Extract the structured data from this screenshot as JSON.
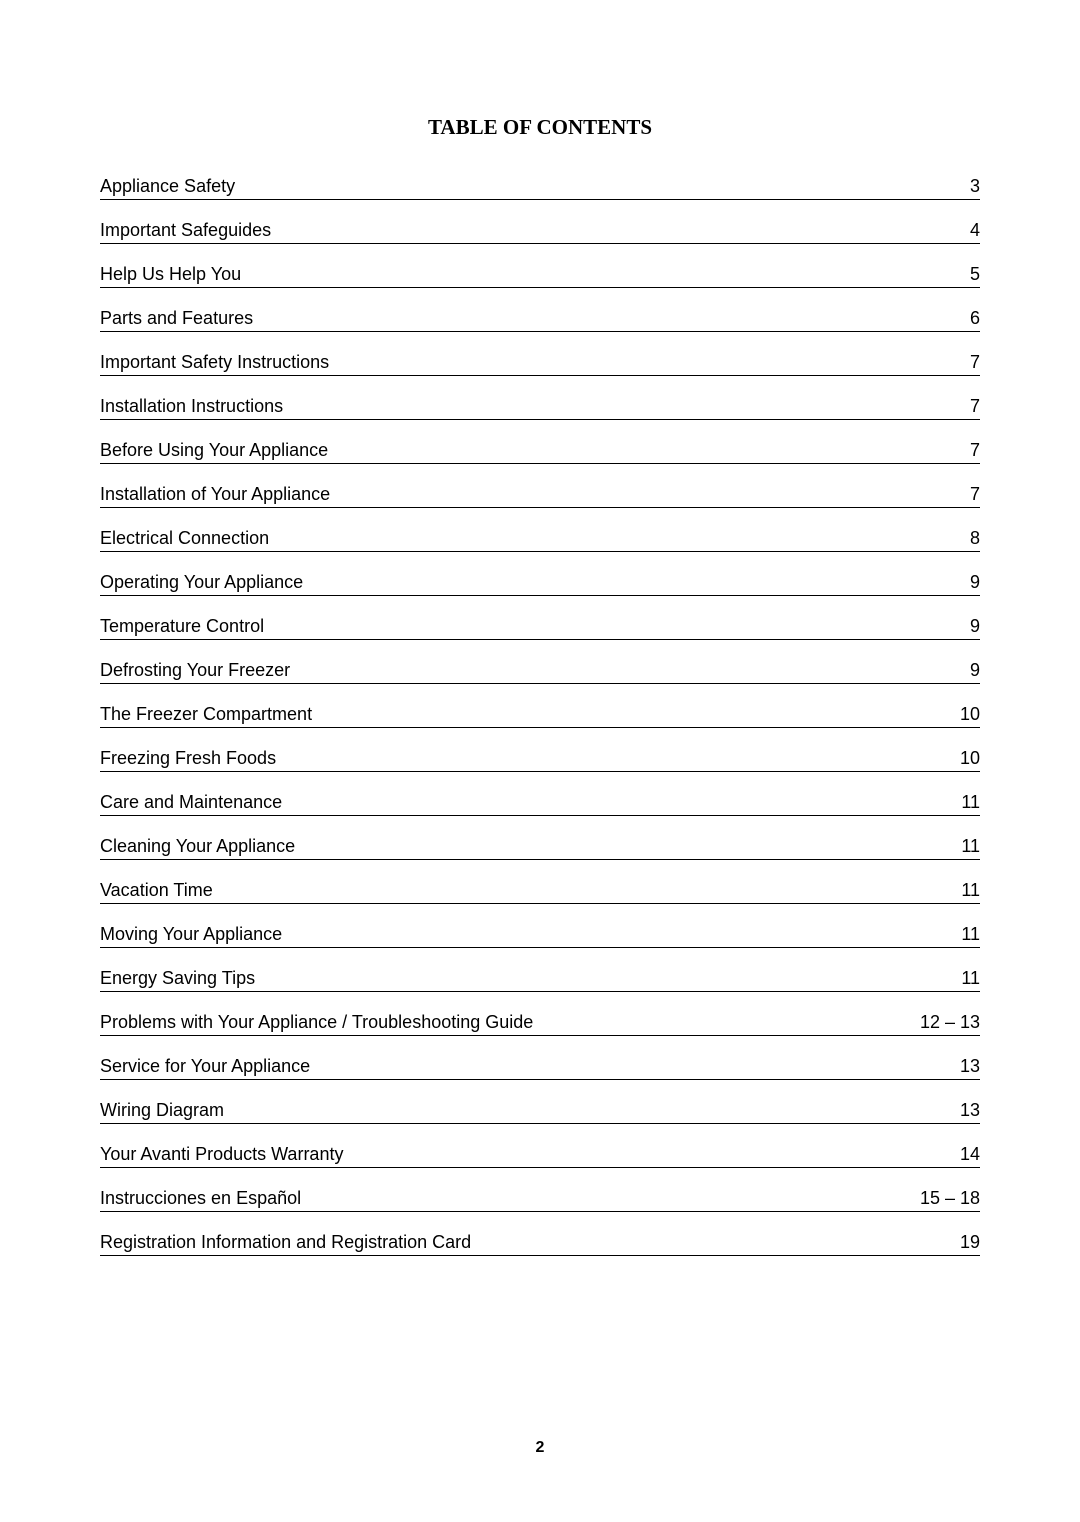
{
  "title": "TABLE OF CONTENTS",
  "pageNumber": "2",
  "entries": [
    {
      "label": "Appliance Safety",
      "page": "3"
    },
    {
      "label": "Important Safeguides",
      "page": "4"
    },
    {
      "label": "Help Us Help You",
      "page": "5"
    },
    {
      "label": "Parts and Features",
      "page": "6"
    },
    {
      "label": "Important Safety Instructions",
      "page": "7"
    },
    {
      "label": "Installation Instructions",
      "page": "7"
    },
    {
      "label": "Before Using Your Appliance",
      "page": "7"
    },
    {
      "label": "Installation of Your Appliance",
      "page": "7"
    },
    {
      "label": "Electrical Connection",
      "page": "8"
    },
    {
      "label": "Operating Your Appliance",
      "page": "9"
    },
    {
      "label": "Temperature Control",
      "page": "9"
    },
    {
      "label": "Defrosting Your Freezer",
      "page": "9"
    },
    {
      "label": "The Freezer Compartment",
      "page": "10"
    },
    {
      "label": "Freezing Fresh Foods",
      "page": "10"
    },
    {
      "label": "Care and Maintenance",
      "page": "11"
    },
    {
      "label": "Cleaning Your Appliance",
      "page": "11"
    },
    {
      "label": "Vacation Time",
      "page": "11"
    },
    {
      "label": "Moving Your Appliance",
      "page": "11"
    },
    {
      "label": "Energy Saving Tips",
      "page": "11"
    },
    {
      "label": "Problems with Your Appliance / Troubleshooting Guide",
      "page": "12 – 13"
    },
    {
      "label": "Service for Your Appliance",
      "page": "13"
    },
    {
      "label": "Wiring Diagram",
      "page": "13"
    },
    {
      "label": "Your Avanti Products Warranty",
      "page": "14"
    },
    {
      "label": "Instrucciones en Español",
      "page": "15 – 18"
    },
    {
      "label": "Registration Information and Registration Card",
      "page": "19"
    }
  ]
}
